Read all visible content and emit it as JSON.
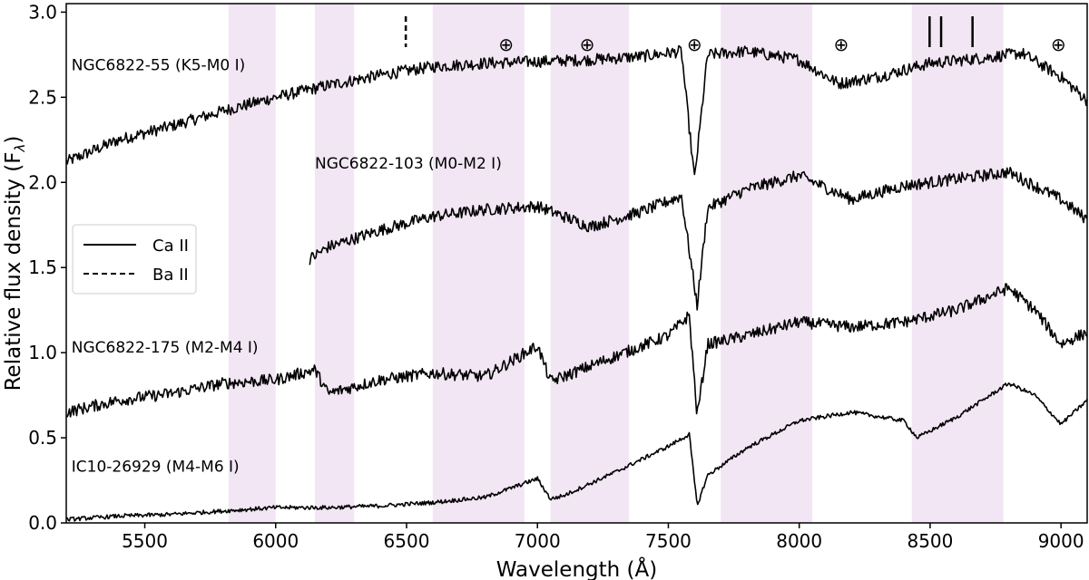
{
  "chart_data": {
    "type": "line",
    "title": "",
    "xlabel": "Wavelength (Å)",
    "ylabel": "Relative flux density (F",
    "ylabel_sub": "λ",
    "ylabel_close": ")",
    "xlim": [
      5200,
      9100
    ],
    "ylim": [
      0.0,
      3.05
    ],
    "xticks": [
      5500,
      6000,
      6500,
      7000,
      7500,
      8000,
      8500,
      9000
    ],
    "xtick_labels": [
      "5500",
      "6000",
      "6500",
      "7000",
      "7500",
      "8000",
      "8500",
      "9000"
    ],
    "yticks": [
      0.0,
      0.5,
      1.0,
      1.5,
      2.0,
      2.5,
      3.0
    ],
    "ytick_labels": [
      "0.0",
      "0.5",
      "1.0",
      "1.5",
      "2.0",
      "2.5",
      "3.0"
    ],
    "shaded_regions": [
      [
        5820,
        6000
      ],
      [
        6150,
        6300
      ],
      [
        6600,
        6950
      ],
      [
        7050,
        7350
      ],
      [
        7700,
        8050
      ],
      [
        8430,
        8780
      ]
    ],
    "shade_color": "#f2e6f4",
    "line_color": "#000000",
    "telluric_symbol": "⊕",
    "telluric_markers": [
      6880,
      7190,
      7600,
      8160,
      8990
    ],
    "line_markers": [
      {
        "species": "Ba II",
        "wavelength": 6497,
        "style": "dashed"
      },
      {
        "species": "Ca II",
        "wavelength": 8498,
        "style": "solid"
      },
      {
        "species": "Ca II",
        "wavelength": 8542,
        "style": "solid"
      },
      {
        "species": "Ca II",
        "wavelength": 8662,
        "style": "solid"
      }
    ],
    "legend": {
      "position": "center-left",
      "entries": [
        {
          "label": "Ca II",
          "style": "solid"
        },
        {
          "label": "Ba II",
          "style": "dashed"
        }
      ]
    },
    "series": [
      {
        "name": "NGC6822-55 (K5-M0 I)",
        "x": [
          5200,
          5400,
          5600,
          5800,
          6000,
          6200,
          6400,
          6600,
          6800,
          7000,
          7200,
          7400,
          7550,
          7600,
          7650,
          7800,
          8000,
          8150,
          8300,
          8500,
          8700,
          8850,
          9000,
          9100
        ],
        "y": [
          2.12,
          2.25,
          2.33,
          2.42,
          2.5,
          2.57,
          2.63,
          2.68,
          2.7,
          2.71,
          2.72,
          2.74,
          2.77,
          2.02,
          2.75,
          2.77,
          2.72,
          2.58,
          2.62,
          2.7,
          2.73,
          2.76,
          2.62,
          2.48
        ],
        "label_pos": [
          5220,
          2.66
        ]
      },
      {
        "name": "NGC6822-103 (M0-M2 I)",
        "x": [
          6130,
          6200,
          6400,
          6600,
          6800,
          7000,
          7200,
          7400,
          7550,
          7610,
          7650,
          7800,
          8000,
          8200,
          8400,
          8600,
          8800,
          9000,
          9100
        ],
        "y": [
          1.55,
          1.62,
          1.72,
          1.8,
          1.84,
          1.86,
          1.74,
          1.83,
          1.92,
          1.28,
          1.85,
          1.96,
          2.04,
          1.9,
          1.98,
          2.02,
          2.06,
          1.9,
          1.78
        ],
        "label_pos": [
          6150,
          2.08
        ]
      },
      {
        "name": "NGC6822-175 (M2-M4 I)",
        "x": [
          5200,
          5400,
          5600,
          5800,
          6000,
          6150,
          6200,
          6400,
          6600,
          6800,
          7000,
          7050,
          7100,
          7300,
          7500,
          7580,
          7610,
          7650,
          7800,
          8000,
          8200,
          8400,
          8600,
          8800,
          8900,
          9000,
          9100
        ],
        "y": [
          0.65,
          0.72,
          0.76,
          0.82,
          0.84,
          0.9,
          0.76,
          0.84,
          0.88,
          0.86,
          1.04,
          0.83,
          0.86,
          0.98,
          1.1,
          1.22,
          0.63,
          1.05,
          1.1,
          1.18,
          1.15,
          1.18,
          1.25,
          1.38,
          1.25,
          1.05,
          1.12
        ],
        "label_pos": [
          5220,
          1.0
        ]
      },
      {
        "name": "IC10-26929 (M4-M6 I)",
        "x": [
          5200,
          5400,
          5600,
          5800,
          6000,
          6200,
          6400,
          6600,
          6800,
          7000,
          7050,
          7100,
          7300,
          7500,
          7580,
          7610,
          7650,
          7800,
          8000,
          8200,
          8400,
          8450,
          8600,
          8800,
          8900,
          9000,
          9100
        ],
        "y": [
          0.02,
          0.04,
          0.05,
          0.07,
          0.09,
          0.09,
          0.1,
          0.12,
          0.15,
          0.26,
          0.14,
          0.16,
          0.3,
          0.45,
          0.52,
          0.1,
          0.28,
          0.44,
          0.6,
          0.65,
          0.6,
          0.5,
          0.62,
          0.82,
          0.75,
          0.58,
          0.72
        ],
        "label_pos": [
          5220,
          0.3
        ]
      }
    ]
  }
}
